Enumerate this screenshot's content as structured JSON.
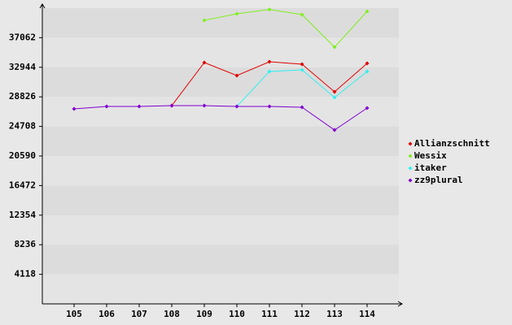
{
  "chart_data": {
    "type": "line",
    "categories": [
      "105",
      "106",
      "107",
      "108",
      "109",
      "110",
      "111",
      "112",
      "113",
      "114"
    ],
    "series": [
      {
        "name": "Allianzschnitt",
        "color": "#e00000",
        "values": [
          null,
          null,
          null,
          27604,
          33600,
          31790,
          33713,
          33374,
          29527,
          33487
        ]
      },
      {
        "name": "Wessix",
        "color": "#80ee20",
        "values": [
          null,
          null,
          null,
          null,
          39483,
          40388,
          41000,
          40275,
          35750,
          40727
        ]
      },
      {
        "name": "itaker",
        "color": "#30f0f0",
        "values": [
          null,
          null,
          null,
          null,
          null,
          27491,
          32356,
          32582,
          28736,
          32356
        ]
      },
      {
        "name": "zz9plural",
        "color": "#8000d0",
        "values": [
          27152,
          27491,
          27491,
          27604,
          27604,
          27491,
          27491,
          27378,
          24210,
          27265
        ]
      }
    ],
    "ylim": [
      0,
      41180
    ],
    "yticks": [
      4118,
      8236,
      12354,
      16472,
      20590,
      24708,
      28826,
      32944,
      37062
    ],
    "grid": true,
    "legend": "right"
  }
}
